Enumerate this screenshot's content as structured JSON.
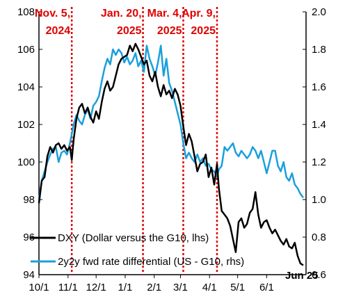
{
  "chart_data": {
    "type": "line",
    "y_left": {
      "min": 94,
      "max": 108,
      "ticks": [
        "94",
        "96",
        "98",
        "100",
        "102",
        "104",
        "106",
        "108"
      ]
    },
    "y_right": {
      "min": 0.6,
      "max": 2.0,
      "ticks": [
        "0.6",
        "0.8",
        "1.0",
        "1.2",
        "1.4",
        "1.6",
        "1.8",
        "2.0"
      ]
    },
    "x_axis": {
      "start": 0,
      "end": 285,
      "tick_labels": [
        "10/1",
        "11/1",
        "12/1",
        "1/1",
        "2/1",
        "3/1",
        "4/1",
        "5/1",
        "6/1"
      ],
      "tick_days": [
        0,
        31,
        61,
        92,
        123,
        151,
        182,
        212,
        243
      ]
    },
    "grid": false,
    "corner_label": "Jun 25",
    "events": [
      {
        "label_line1": "Nov. 5,",
        "label_line2": "2024",
        "day": 35
      },
      {
        "label_line1": "Jan. 20,",
        "label_line2": "2025",
        "day": 111
      },
      {
        "label_line1": "Mar. 4,",
        "label_line2": "2025",
        "day": 154
      },
      {
        "label_line1": "Apr. 9,",
        "label_line2": "2025",
        "day": 190
      }
    ],
    "series": [
      {
        "name": "DXY (Dollar versus the G10, lhs)",
        "axis": "left",
        "color": "#000000",
        "x": [
          0,
          3,
          6,
          9,
          12,
          15,
          18,
          21,
          24,
          27,
          30,
          33,
          35,
          37,
          40,
          43,
          46,
          49,
          52,
          55,
          58,
          61,
          64,
          67,
          70,
          73,
          76,
          79,
          82,
          85,
          88,
          91,
          94,
          97,
          100,
          103,
          106,
          109,
          112,
          115,
          118,
          121,
          124,
          127,
          130,
          133,
          136,
          139,
          142,
          145,
          148,
          151,
          154,
          157,
          160,
          163,
          166,
          169,
          172,
          175,
          178,
          181,
          184,
          187,
          190,
          192,
          195,
          198,
          201,
          204,
          207,
          210,
          213,
          216,
          219,
          222,
          225,
          228,
          231,
          234,
          237,
          240,
          243,
          246,
          249,
          252,
          255,
          258,
          261,
          264,
          267,
          270,
          273,
          276,
          279,
          282
        ],
        "y": [
          97.8,
          99.0,
          99.2,
          100.3,
          100.8,
          100.5,
          100.9,
          101.0,
          100.7,
          100.9,
          100.6,
          100.8,
          100.1,
          101.2,
          102.3,
          102.9,
          103.1,
          102.6,
          102.9,
          102.4,
          102.1,
          102.7,
          102.3,
          103.2,
          103.9,
          104.3,
          103.8,
          104.0,
          104.6,
          105.2,
          105.5,
          105.6,
          105.7,
          106.2,
          105.9,
          106.3,
          106.0,
          105.6,
          105.2,
          105.4,
          104.6,
          104.3,
          104.8,
          104.0,
          103.5,
          104.1,
          103.6,
          103.8,
          103.4,
          103.9,
          103.6,
          103.0,
          101.9,
          100.9,
          101.5,
          101.1,
          100.3,
          99.5,
          99.9,
          100.0,
          100.4,
          99.2,
          99.7,
          98.8,
          99.9,
          98.6,
          97.4,
          97.2,
          97.0,
          96.6,
          95.9,
          95.2,
          96.8,
          97.0,
          96.5,
          96.7,
          97.3,
          97.5,
          98.4,
          97.2,
          96.5,
          96.8,
          96.9,
          96.5,
          96.2,
          96.4,
          96.1,
          95.8,
          95.6,
          95.9,
          95.5,
          95.4,
          95.7,
          95.0,
          94.6,
          94.5
        ]
      },
      {
        "name": "2y2y fwd rate differential (US - G10, rhs)",
        "axis": "right",
        "color": "#1a9fdb",
        "x": [
          0,
          3,
          6,
          9,
          12,
          15,
          18,
          21,
          24,
          27,
          30,
          33,
          35,
          37,
          40,
          43,
          46,
          49,
          52,
          55,
          58,
          61,
          64,
          67,
          70,
          73,
          76,
          79,
          82,
          85,
          88,
          91,
          94,
          97,
          100,
          103,
          106,
          109,
          112,
          115,
          118,
          121,
          124,
          127,
          130,
          133,
          136,
          139,
          142,
          145,
          148,
          151,
          154,
          157,
          160,
          163,
          166,
          169,
          172,
          175,
          178,
          181,
          184,
          187,
          190,
          192,
          195,
          198,
          201,
          204,
          207,
          210,
          213,
          216,
          219,
          222,
          225,
          228,
          231,
          234,
          237,
          240,
          243,
          246,
          249,
          252,
          255,
          258,
          261,
          264,
          267,
          270,
          273,
          276,
          279,
          282
        ],
        "y": [
          1.0,
          1.1,
          1.15,
          1.2,
          1.24,
          1.27,
          1.28,
          1.2,
          1.25,
          1.26,
          1.24,
          1.3,
          1.35,
          1.4,
          1.45,
          1.42,
          1.4,
          1.45,
          1.48,
          1.43,
          1.5,
          1.52,
          1.55,
          1.63,
          1.7,
          1.75,
          1.72,
          1.8,
          1.77,
          1.8,
          1.78,
          1.73,
          1.76,
          1.72,
          1.74,
          1.78,
          1.71,
          1.74,
          1.68,
          1.82,
          1.75,
          1.71,
          1.66,
          1.73,
          1.82,
          1.66,
          1.75,
          1.62,
          1.58,
          1.52,
          1.46,
          1.4,
          1.3,
          1.22,
          1.25,
          1.22,
          1.2,
          1.24,
          1.2,
          1.22,
          1.18,
          1.19,
          1.16,
          1.15,
          1.12,
          1.16,
          1.18,
          1.28,
          1.26,
          1.28,
          1.3,
          1.25,
          1.23,
          1.26,
          1.24,
          1.22,
          1.24,
          1.28,
          1.26,
          1.22,
          1.26,
          1.2,
          1.14,
          1.2,
          1.26,
          1.26,
          1.18,
          1.15,
          1.2,
          1.12,
          1.1,
          1.14,
          1.08,
          1.06,
          1.03,
          1.01
        ]
      }
    ]
  }
}
